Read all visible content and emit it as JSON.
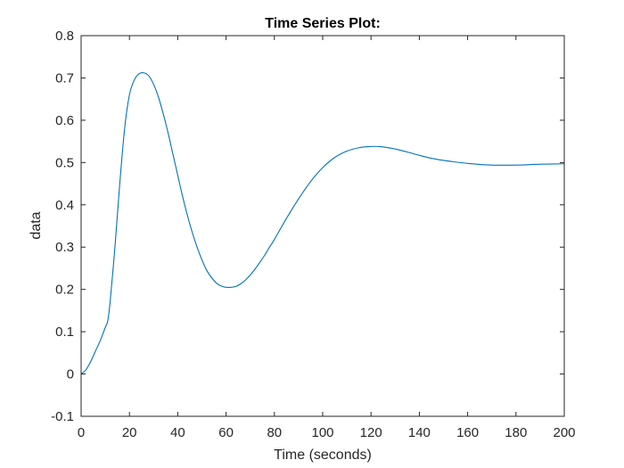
{
  "chart_data": {
    "type": "line",
    "title": "Time Series Plot:",
    "xlabel": "Time (seconds)",
    "ylabel": "data",
    "xlim": [
      0,
      200
    ],
    "ylim": [
      -0.1,
      0.8
    ],
    "xticks": [
      0,
      20,
      40,
      60,
      80,
      100,
      120,
      140,
      160,
      180,
      200
    ],
    "yticks": [
      -0.1,
      0,
      0.1,
      0.2,
      0.3,
      0.4,
      0.5,
      0.6,
      0.7,
      0.8
    ],
    "xtick_labels": [
      "0",
      "20",
      "40",
      "60",
      "80",
      "100",
      "120",
      "140",
      "160",
      "180",
      "200"
    ],
    "ytick_labels": [
      "-0.1",
      "0",
      "0.1",
      "0.2",
      "0.3",
      "0.4",
      "0.5",
      "0.6",
      "0.7",
      "0.8"
    ],
    "grid": false,
    "legend": "none",
    "line_color": "#0072BD",
    "series": [
      {
        "x": [
          0,
          2,
          4,
          6,
          8,
          10,
          11,
          12,
          14,
          16,
          18,
          20,
          22,
          24,
          26,
          28,
          30,
          32,
          34,
          36,
          38,
          40,
          42,
          44,
          46,
          48,
          50,
          52,
          54,
          56,
          58,
          60,
          62,
          64,
          66,
          68,
          70,
          72,
          74,
          76,
          78,
          80,
          85,
          90,
          95,
          100,
          105,
          110,
          115,
          120,
          125,
          130,
          135,
          140,
          145,
          150,
          160,
          170,
          180,
          190,
          200
        ],
        "y": [
          0,
          0.01,
          0.03,
          0.055,
          0.08,
          0.11,
          0.125,
          0.17,
          0.3,
          0.45,
          0.58,
          0.66,
          0.695,
          0.71,
          0.712,
          0.705,
          0.685,
          0.655,
          0.615,
          0.57,
          0.52,
          0.47,
          0.42,
          0.375,
          0.335,
          0.3,
          0.27,
          0.245,
          0.228,
          0.215,
          0.208,
          0.205,
          0.205,
          0.207,
          0.213,
          0.222,
          0.234,
          0.248,
          0.264,
          0.281,
          0.3,
          0.318,
          0.368,
          0.414,
          0.455,
          0.488,
          0.512,
          0.527,
          0.535,
          0.538,
          0.537,
          0.532,
          0.525,
          0.517,
          0.51,
          0.505,
          0.498,
          0.494,
          0.494,
          0.496,
          0.497
        ]
      }
    ]
  }
}
